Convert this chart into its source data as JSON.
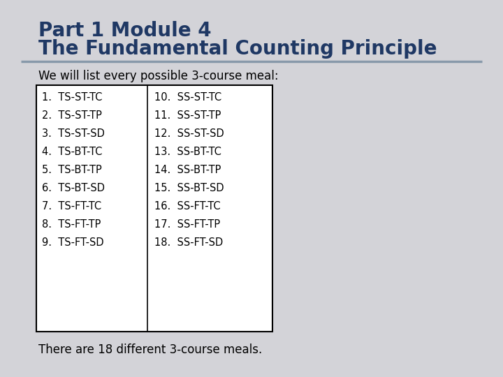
{
  "title_line1": "Part 1 Module 4",
  "title_line2": "The Fundamental Counting Principle",
  "title_color": "#1F3864",
  "subtitle": "We will list every possible 3-course meal:",
  "subtitle_color": "#000000",
  "col1_items": [
    "1.  TS-ST-TC",
    "2.  TS-ST-TP",
    "3.  TS-ST-SD",
    "4.  TS-BT-TC",
    "5.  TS-BT-TP",
    "6.  TS-BT-SD",
    "7.  TS-FT-TC",
    "8.  TS-FT-TP",
    "9.  TS-FT-SD"
  ],
  "col2_items": [
    "10.  SS-ST-TC",
    "11.  SS-ST-TP",
    "12.  SS-ST-SD",
    "13.  SS-BT-TC",
    "14.  SS-BT-TP",
    "15.  SS-BT-SD",
    "16.  SS-FT-TC",
    "17.  SS-FT-TP",
    "18.  SS-FT-SD"
  ],
  "footer": "There are 18 different 3-course meals.",
  "footer_color": "#000000",
  "background_color": "#D3D3D8",
  "divider_color": "#8899AA",
  "box_border_color": "#000000",
  "table_bg": "#FFFFFF",
  "text_color": "#000000",
  "item_fontsize": 10.5,
  "subtitle_fontsize": 12,
  "title_fontsize1": 20,
  "title_fontsize2": 20,
  "footer_fontsize": 12
}
